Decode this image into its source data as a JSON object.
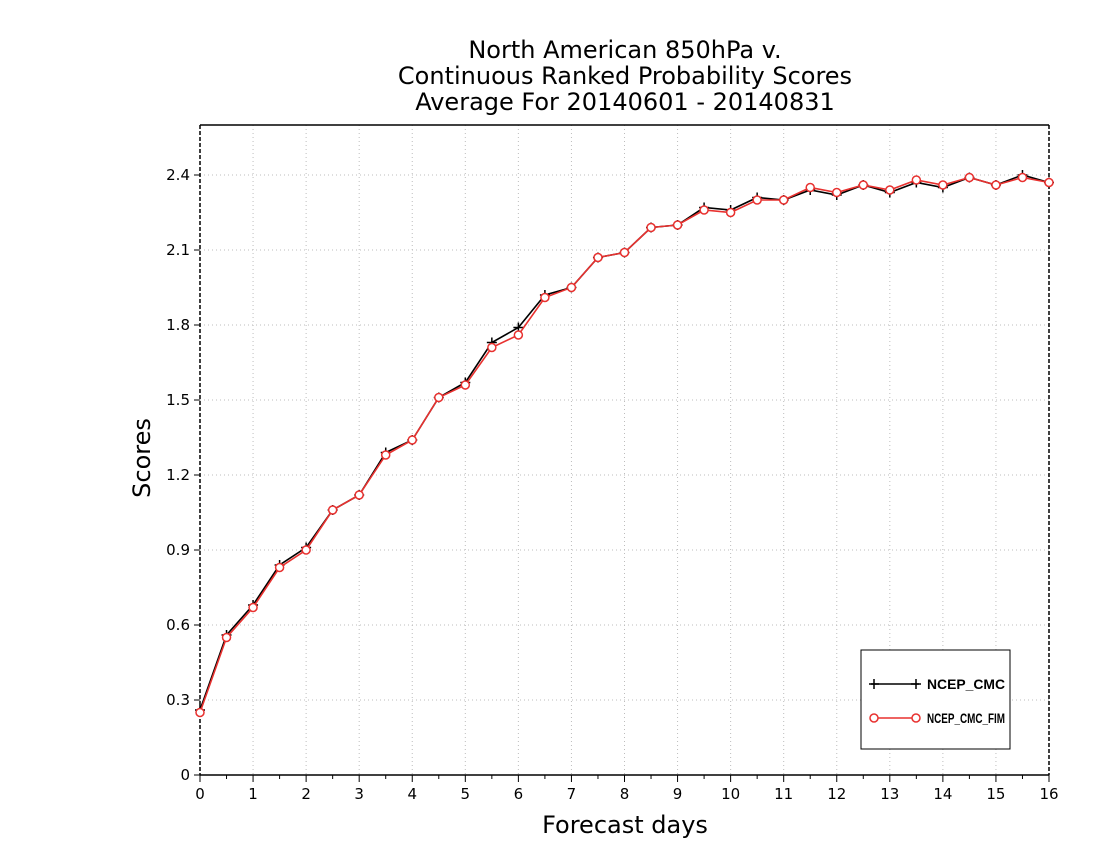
{
  "chart_data": {
    "type": "line",
    "title": [
      "North American 850hPa v.",
      "Continuous Ranked Probability Scores",
      "Average For 20140601 - 20140831"
    ],
    "xlabel": "Forecast days",
    "ylabel": "Scores",
    "xlim": [
      0,
      16
    ],
    "ylim": [
      0,
      2.6
    ],
    "xticks": [
      "0",
      "1",
      "2",
      "3",
      "4",
      "5",
      "6",
      "7",
      "8",
      "9",
      "10",
      "11",
      "12",
      "13",
      "14",
      "15",
      "16"
    ],
    "yticks": [
      "0",
      "0.3",
      "0.6",
      "0.9",
      "1.2",
      "1.5",
      "1.8",
      "2.1",
      "2.4"
    ],
    "grid": true,
    "legend_position": "bottom-right",
    "x": [
      0,
      0.5,
      1,
      1.5,
      2,
      2.5,
      3,
      3.5,
      4,
      4.5,
      5,
      5.5,
      6,
      6.5,
      7,
      7.5,
      8,
      8.5,
      9,
      9.5,
      10,
      10.5,
      11,
      11.5,
      12,
      12.5,
      13,
      13.5,
      14,
      14.5,
      15,
      15.5,
      16
    ],
    "series": [
      {
        "name": "NCEP_CMC",
        "color": "#000000",
        "marker": "plus",
        "values": [
          0.26,
          0.56,
          0.68,
          0.84,
          0.91,
          1.06,
          1.12,
          1.29,
          1.34,
          1.51,
          1.57,
          1.73,
          1.79,
          1.92,
          1.95,
          2.07,
          2.09,
          2.19,
          2.2,
          2.27,
          2.26,
          2.31,
          2.3,
          2.34,
          2.32,
          2.36,
          2.33,
          2.37,
          2.35,
          2.39,
          2.36,
          2.4,
          2.37
        ]
      },
      {
        "name": "NCEP_CMC_FIM",
        "color": "#e8312f",
        "marker": "circle",
        "values": [
          0.25,
          0.55,
          0.67,
          0.83,
          0.9,
          1.06,
          1.12,
          1.28,
          1.34,
          1.51,
          1.56,
          1.71,
          1.76,
          1.91,
          1.95,
          2.07,
          2.09,
          2.19,
          2.2,
          2.26,
          2.25,
          2.3,
          2.3,
          2.35,
          2.33,
          2.36,
          2.34,
          2.38,
          2.36,
          2.39,
          2.36,
          2.39,
          2.37
        ]
      }
    ]
  }
}
